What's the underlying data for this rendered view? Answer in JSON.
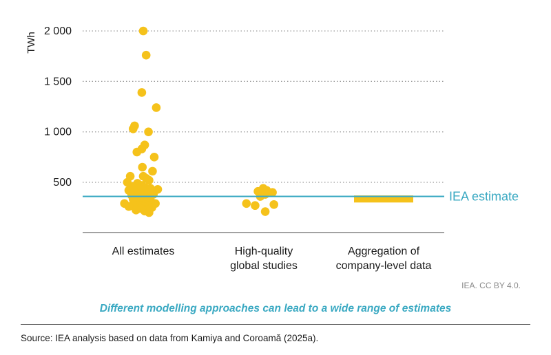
{
  "chart_data": {
    "type": "scatter",
    "title": "",
    "xlabel": "",
    "ylabel": "TWh",
    "ylim": [
      0,
      2050
    ],
    "yticks": [
      500,
      1000,
      1500,
      2000
    ],
    "ytick_labels": [
      "500",
      "1 000",
      "1 500",
      "2 000"
    ],
    "grid": "horizontal dotted",
    "categories": [
      "All estimates",
      "High-quality global studies",
      "Aggregation of company-level data"
    ],
    "category_lines": [
      [
        "All estimates"
      ],
      [
        "High-quality",
        "global studies"
      ],
      [
        "Aggregation of",
        "company-level data"
      ]
    ],
    "series": [
      {
        "category": "All estimates",
        "points": [
          {
            "dx": 0.0,
            "y": 2000
          },
          {
            "dx": 0.1,
            "y": 1760
          },
          {
            "dx": -0.05,
            "y": 1390
          },
          {
            "dx": 0.45,
            "y": 1240
          },
          {
            "dx": -0.3,
            "y": 1060
          },
          {
            "dx": -0.35,
            "y": 1030
          },
          {
            "dx": 0.18,
            "y": 1000
          },
          {
            "dx": 0.05,
            "y": 870
          },
          {
            "dx": -0.05,
            "y": 830
          },
          {
            "dx": -0.22,
            "y": 800
          },
          {
            "dx": 0.38,
            "y": 750
          },
          {
            "dx": -0.03,
            "y": 650
          },
          {
            "dx": 0.32,
            "y": 610
          },
          {
            "dx": -0.45,
            "y": 560
          },
          {
            "dx": 0.0,
            "y": 560
          },
          {
            "dx": 0.1,
            "y": 540
          },
          {
            "dx": 0.2,
            "y": 520
          },
          {
            "dx": -0.55,
            "y": 500
          },
          {
            "dx": -0.2,
            "y": 490
          },
          {
            "dx": -0.05,
            "y": 470
          },
          {
            "dx": -0.35,
            "y": 460
          },
          {
            "dx": 0.05,
            "y": 450
          },
          {
            "dx": -0.15,
            "y": 440
          },
          {
            "dx": 0.25,
            "y": 440
          },
          {
            "dx": 0.5,
            "y": 430
          },
          {
            "dx": -0.5,
            "y": 420
          },
          {
            "dx": -0.3,
            "y": 410
          },
          {
            "dx": 0.15,
            "y": 400
          },
          {
            "dx": -0.08,
            "y": 390
          },
          {
            "dx": 0.35,
            "y": 380
          },
          {
            "dx": -0.4,
            "y": 370
          },
          {
            "dx": 0.05,
            "y": 360
          },
          {
            "dx": -0.2,
            "y": 350
          },
          {
            "dx": 0.22,
            "y": 340
          },
          {
            "dx": -0.35,
            "y": 330
          },
          {
            "dx": 0.0,
            "y": 320
          },
          {
            "dx": 0.12,
            "y": 310
          },
          {
            "dx": -0.12,
            "y": 305
          },
          {
            "dx": 0.3,
            "y": 300
          },
          {
            "dx": -0.28,
            "y": 295
          },
          {
            "dx": -0.65,
            "y": 290
          },
          {
            "dx": 0.42,
            "y": 290
          },
          {
            "dx": 0.05,
            "y": 280
          },
          {
            "dx": -0.18,
            "y": 275
          },
          {
            "dx": 0.2,
            "y": 270
          },
          {
            "dx": -0.35,
            "y": 265
          },
          {
            "dx": 0.0,
            "y": 260
          },
          {
            "dx": -0.5,
            "y": 260
          },
          {
            "dx": 0.3,
            "y": 250
          },
          {
            "dx": -0.1,
            "y": 240
          },
          {
            "dx": 0.1,
            "y": 230
          },
          {
            "dx": -0.25,
            "y": 225
          },
          {
            "dx": 0.05,
            "y": 215
          },
          {
            "dx": 0.2,
            "y": 200
          }
        ]
      },
      {
        "category": "High-quality global studies",
        "points": [
          {
            "dx": -0.02,
            "y": 440
          },
          {
            "dx": -0.2,
            "y": 410
          },
          {
            "dx": 0.1,
            "y": 420
          },
          {
            "dx": 0.3,
            "y": 400
          },
          {
            "dx": 0.05,
            "y": 380
          },
          {
            "dx": -0.12,
            "y": 360
          },
          {
            "dx": -0.6,
            "y": 290
          },
          {
            "dx": -0.3,
            "y": 270
          },
          {
            "dx": 0.35,
            "y": 280
          },
          {
            "dx": 0.05,
            "y": 210
          }
        ]
      },
      {
        "category": "Aggregation of company-level data",
        "range": [
          300,
          370
        ]
      }
    ],
    "reference_line": {
      "label": "IEA estimate",
      "y": 360
    },
    "colors": {
      "points": "#f5c21b",
      "range_bar": "#f5c21b",
      "reference": "#3aa9c2",
      "grid": "#9a9a9a",
      "axis": "#444444"
    }
  },
  "credit": "IEA. CC BY 4.0.",
  "subtitle": "Different modelling approaches can lead to a wide range of estimates",
  "source": "Source: IEA analysis based on data from Kamiya and Coroamă (2025a)."
}
